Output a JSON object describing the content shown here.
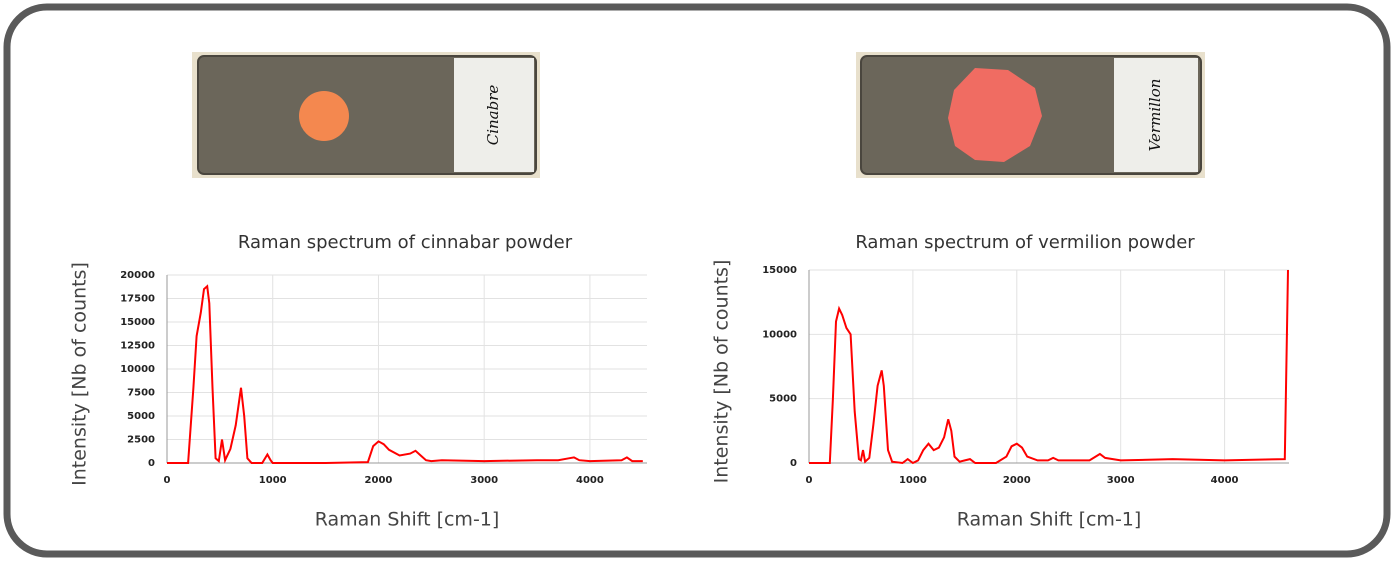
{
  "photo_labels": [
    "Cinabre",
    "Vermillon"
  ],
  "chart_data": [
    {
      "type": "line",
      "title": "Raman spectrum of cinnabar powder",
      "x_label": "Raman Shift [cm-1]",
      "y_label": "Intensity [Nb of counts]",
      "xlim": [
        0,
        4540
      ],
      "xticks": [
        0,
        1000,
        2000,
        3000,
        4000
      ],
      "ylim": [
        0,
        20000
      ],
      "yticks": [
        0,
        2500,
        5000,
        7500,
        10000,
        12500,
        15000,
        17500,
        20000
      ],
      "grid": true,
      "series": [
        {
          "color": "#ff0000",
          "x": [
            0,
            200,
            250,
            280,
            320,
            350,
            380,
            400,
            430,
            460,
            490,
            520,
            550,
            600,
            650,
            700,
            730,
            760,
            800,
            900,
            950,
            980,
            1000,
            1050,
            1500,
            1900,
            1950,
            2000,
            2050,
            2100,
            2200,
            2300,
            2350,
            2400,
            2450,
            2500,
            2600,
            3000,
            3500,
            3700,
            3800,
            3850,
            3900,
            4000,
            4300,
            4350,
            4400,
            4500
          ],
          "values": [
            0,
            0,
            8000,
            13500,
            16000,
            18500,
            18800,
            17000,
            8000,
            500,
            200,
            2500,
            300,
            1500,
            4000,
            8000,
            5000,
            500,
            0,
            0,
            900,
            300,
            0,
            0,
            0,
            100,
            1800,
            2300,
            2000,
            1400,
            800,
            1000,
            1300,
            800,
            300,
            200,
            300,
            200,
            300,
            300,
            500,
            600,
            300,
            200,
            300,
            600,
            200,
            200
          ]
        }
      ]
    },
    {
      "type": "line",
      "title": "Raman spectrum of vermilion powder",
      "x_label": "Raman Shift [cm-1]",
      "y_label": "Intensity [Nb of counts]",
      "xlim": [
        0,
        4620
      ],
      "xticks": [
        0,
        1000,
        2000,
        3000,
        4000
      ],
      "ylim": [
        0,
        15000
      ],
      "yticks": [
        0,
        5000,
        10000,
        15000
      ],
      "grid": true,
      "series": [
        {
          "color": "#ff0000",
          "x": [
            0,
            200,
            230,
            260,
            290,
            320,
            360,
            400,
            440,
            480,
            500,
            520,
            540,
            580,
            620,
            660,
            700,
            720,
            760,
            800,
            900,
            950,
            1000,
            1050,
            1100,
            1150,
            1200,
            1250,
            1300,
            1340,
            1370,
            1400,
            1450,
            1500,
            1550,
            1600,
            1800,
            1900,
            1950,
            2000,
            2050,
            2100,
            2200,
            2300,
            2350,
            2400,
            2700,
            2800,
            2850,
            3000,
            3500,
            4000,
            4580,
            4610
          ],
          "values": [
            0,
            0,
            5000,
            11000,
            12000,
            11500,
            10500,
            10000,
            4000,
            300,
            200,
            1000,
            100,
            400,
            3000,
            6000,
            7200,
            6000,
            1000,
            100,
            0,
            300,
            0,
            200,
            1000,
            1500,
            1000,
            1200,
            2000,
            3400,
            2500,
            500,
            100,
            200,
            300,
            0,
            0,
            500,
            1300,
            1500,
            1200,
            500,
            200,
            200,
            400,
            200,
            200,
            700,
            400,
            200,
            300,
            200,
            300,
            15000
          ]
        }
      ]
    }
  ]
}
